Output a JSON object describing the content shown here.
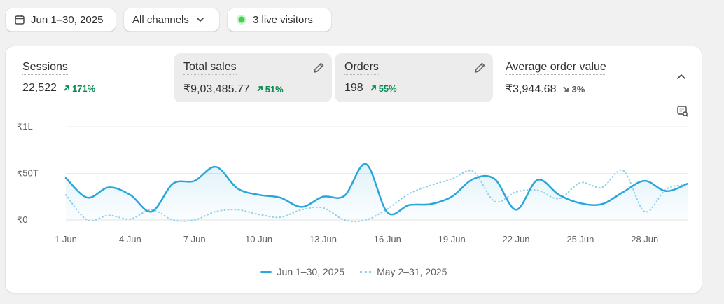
{
  "filters": {
    "date_range": "Jun 1–30, 2025",
    "channels": "All channels",
    "live_visitors": "3 live visitors",
    "live_color": "#3fd34a"
  },
  "metrics": [
    {
      "label": "Sessions",
      "value": "22,522",
      "delta": "171%",
      "direction": "up",
      "selected": false,
      "editable": false
    },
    {
      "label": "Total sales",
      "value": "₹9,03,485.77",
      "delta": "51%",
      "direction": "up",
      "selected": true,
      "editable": true
    },
    {
      "label": "Orders",
      "value": "198",
      "delta": "55%",
      "direction": "up",
      "selected": true,
      "editable": true
    },
    {
      "label": "Average order value",
      "value": "₹3,944.68",
      "delta": "3%",
      "direction": "down",
      "selected": false,
      "editable": false
    }
  ],
  "colors": {
    "positive": "#0c8a53",
    "current_series": "#29a6dc",
    "previous_series": "#8ed0ea"
  },
  "chart_data": {
    "type": "line",
    "y_ticks": [
      "₹1L",
      "₹50T",
      "₹0"
    ],
    "y_tick_values": [
      100000,
      50000,
      0
    ],
    "ylim": [
      0,
      100000
    ],
    "x_tick_labels": [
      "1 Jun",
      "4 Jun",
      "7 Jun",
      "10 Jun",
      "13 Jun",
      "16 Jun",
      "19 Jun",
      "22 Jun",
      "25 Jun",
      "28 Jun"
    ],
    "x_tick_days": [
      1,
      4,
      7,
      10,
      13,
      16,
      19,
      22,
      25,
      28
    ],
    "x_days": [
      1,
      2,
      3,
      4,
      5,
      6,
      7,
      8,
      9,
      10,
      11,
      12,
      13,
      14,
      15,
      16,
      17,
      18,
      19,
      20,
      21,
      22,
      23,
      24,
      25,
      26,
      27,
      28,
      29,
      30
    ],
    "grid": true,
    "legend_position": "bottom",
    "series": [
      {
        "name": "Jun 1–30, 2025",
        "style": "solid",
        "values": [
          45000,
          24000,
          35000,
          27000,
          9000,
          39000,
          42000,
          57000,
          34000,
          27000,
          24000,
          14000,
          25000,
          26000,
          60000,
          8000,
          16000,
          17000,
          25000,
          44000,
          44000,
          11000,
          43000,
          27000,
          18000,
          17000,
          30000,
          42000,
          31000,
          39000
        ]
      },
      {
        "name": "May 2–31, 2025",
        "style": "dotted",
        "values": [
          27000,
          0,
          5000,
          1000,
          11000,
          0,
          0,
          9000,
          11000,
          6000,
          3000,
          11000,
          13000,
          0,
          0,
          12000,
          28000,
          37000,
          44000,
          52000,
          20000,
          30000,
          32000,
          23000,
          40000,
          35000,
          53000,
          9000,
          33000,
          38000
        ]
      }
    ]
  },
  "legend": [
    "Jun 1–30, 2025",
    "May 2–31, 2025"
  ]
}
